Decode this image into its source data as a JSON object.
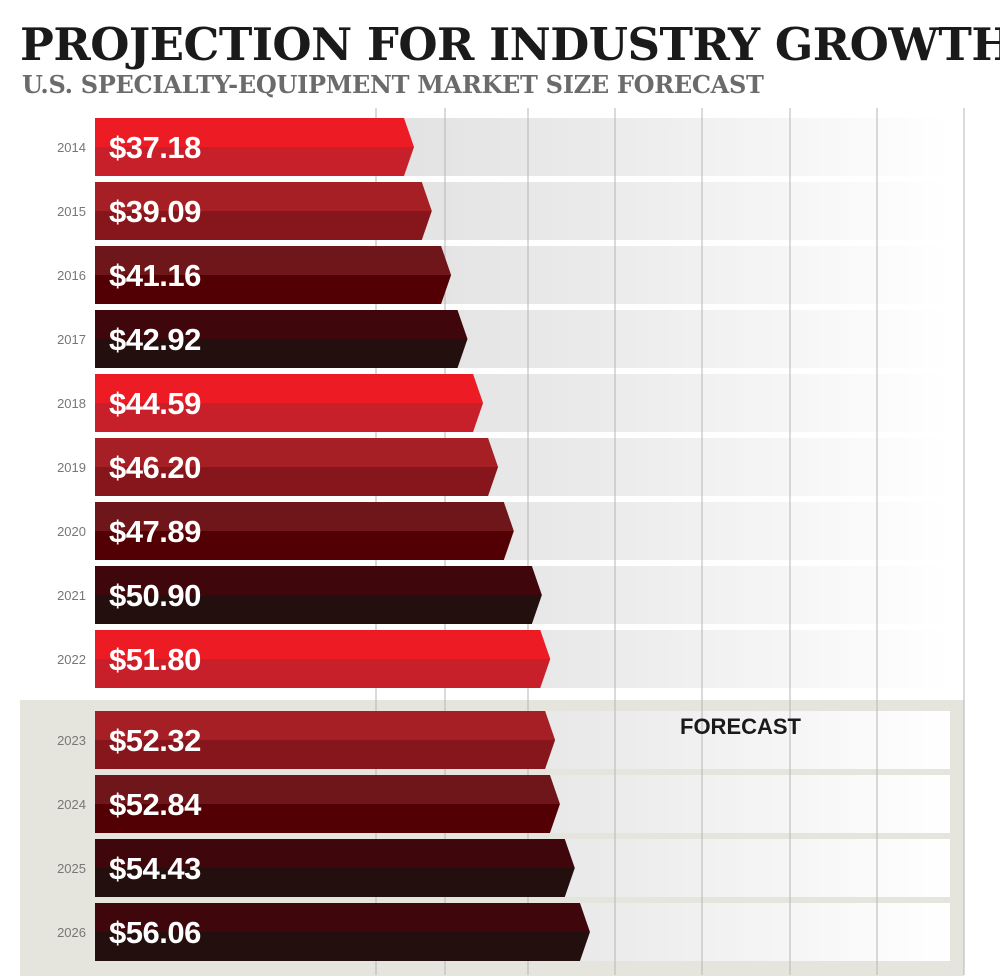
{
  "chart_data": {
    "type": "bar",
    "orientation": "horizontal",
    "title": "PROJECTION FOR INDUSTRY GROWTH",
    "subtitle": "U.S. SPECIALTY-EQUIPMENT MARKET SIZE FORECAST",
    "categories": [
      "2014",
      "2015",
      "2016",
      "2017",
      "2018",
      "2019",
      "2020",
      "2021",
      "2022",
      "2023",
      "2024",
      "2025",
      "2026"
    ],
    "values": [
      37.18,
      39.09,
      41.16,
      42.92,
      44.59,
      46.2,
      47.89,
      50.9,
      51.8,
      52.32,
      52.84,
      54.43,
      56.06
    ],
    "labels": [
      "$37.18",
      "$39.09",
      "$41.16",
      "$42.92",
      "$44.59",
      "$46.20",
      "$47.89",
      "$50.90",
      "$51.80",
      "$52.32",
      "$52.84",
      "$54.43",
      "$56.06"
    ],
    "forecast_label": "FORECAST",
    "forecast_years": [
      "2023",
      "2024",
      "2025",
      "2026"
    ],
    "grid": true,
    "palette": [
      {
        "top": "#ed1c24",
        "bottom": "#c8202a"
      },
      {
        "top": "#a51f24",
        "bottom": "#86161b"
      },
      {
        "top": "#6e161a",
        "bottom": "#520003"
      },
      {
        "top": "#3f070b",
        "bottom": "#240f0f"
      }
    ],
    "bar_colors": [
      0,
      1,
      2,
      3,
      0,
      1,
      2,
      3,
      0,
      1,
      2,
      3,
      3
    ]
  }
}
